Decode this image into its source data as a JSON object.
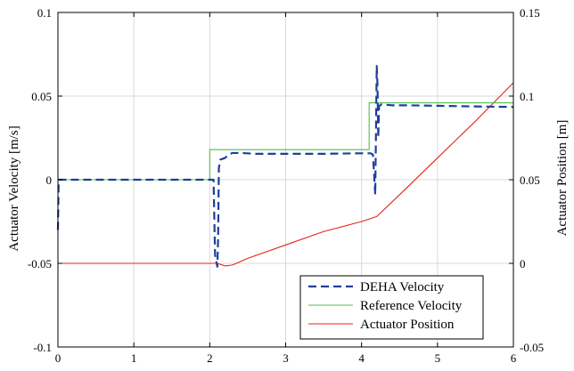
{
  "chart_data": {
    "type": "line",
    "title": "",
    "xlabel": "",
    "ylabel_left": "Actuator Velocity [m/s]",
    "ylabel_right": "Actuator Position [m]",
    "xlim": [
      0,
      6
    ],
    "ylim_left": [
      -0.1,
      0.1
    ],
    "ylim_right": [
      -0.05,
      0.15
    ],
    "grid": true,
    "legend_position": "bottom-right",
    "x_ticks": [
      "0",
      "1",
      "2",
      "3",
      "4",
      "5",
      "6"
    ],
    "y_left_ticks": [
      "-0.1",
      "-0.05",
      "0",
      "0.05",
      "0.1"
    ],
    "y_right_ticks": [
      "-0.05",
      "0",
      "0.05",
      "0.1",
      "0.15"
    ],
    "series": [
      {
        "name": "DEHA Velocity",
        "axis": "left",
        "color": "#1f3f99",
        "style": "dashed",
        "points": [
          [
            0.0,
            -0.03
          ],
          [
            0.01,
            0.0
          ],
          [
            2.05,
            0.0
          ],
          [
            2.07,
            -0.045
          ],
          [
            2.1,
            -0.052
          ],
          [
            2.11,
            -0.035
          ],
          [
            2.12,
            0.007
          ],
          [
            2.14,
            0.012
          ],
          [
            2.2,
            0.013
          ],
          [
            2.25,
            0.015
          ],
          [
            2.3,
            0.016
          ],
          [
            2.4,
            0.016
          ],
          [
            2.6,
            0.0155
          ],
          [
            3.0,
            0.0155
          ],
          [
            3.5,
            0.0155
          ],
          [
            4.0,
            0.0158
          ],
          [
            4.12,
            0.0158
          ],
          [
            4.15,
            0.015
          ],
          [
            4.18,
            -0.009
          ],
          [
            4.2,
            0.068
          ],
          [
            4.21,
            0.056
          ],
          [
            4.22,
            0.025
          ],
          [
            4.23,
            0.044
          ],
          [
            4.26,
            0.045
          ],
          [
            4.4,
            0.0445
          ],
          [
            4.6,
            0.0445
          ],
          [
            5.0,
            0.0442
          ],
          [
            5.5,
            0.0438
          ],
          [
            6.0,
            0.0435
          ]
        ]
      },
      {
        "name": "Reference Velocity",
        "axis": "left",
        "color": "#4fbf4f",
        "style": "solid",
        "points": [
          [
            0.0,
            0.0
          ],
          [
            2.0,
            0.0
          ],
          [
            2.0,
            0.018
          ],
          [
            4.1,
            0.018
          ],
          [
            4.1,
            0.046
          ],
          [
            6.0,
            0.046
          ]
        ]
      },
      {
        "name": "Actuator Position",
        "axis": "right",
        "color": "#e8221c",
        "style": "solid",
        "points": [
          [
            0.0,
            0.0
          ],
          [
            2.1,
            0.0
          ],
          [
            2.2,
            -0.0015
          ],
          [
            2.3,
            -0.001
          ],
          [
            2.5,
            0.003
          ],
          [
            3.0,
            0.011
          ],
          [
            3.5,
            0.019
          ],
          [
            4.0,
            0.025
          ],
          [
            4.2,
            0.028
          ],
          [
            4.5,
            0.041
          ],
          [
            5.0,
            0.063
          ],
          [
            5.5,
            0.085
          ],
          [
            6.0,
            0.108
          ]
        ]
      }
    ]
  }
}
